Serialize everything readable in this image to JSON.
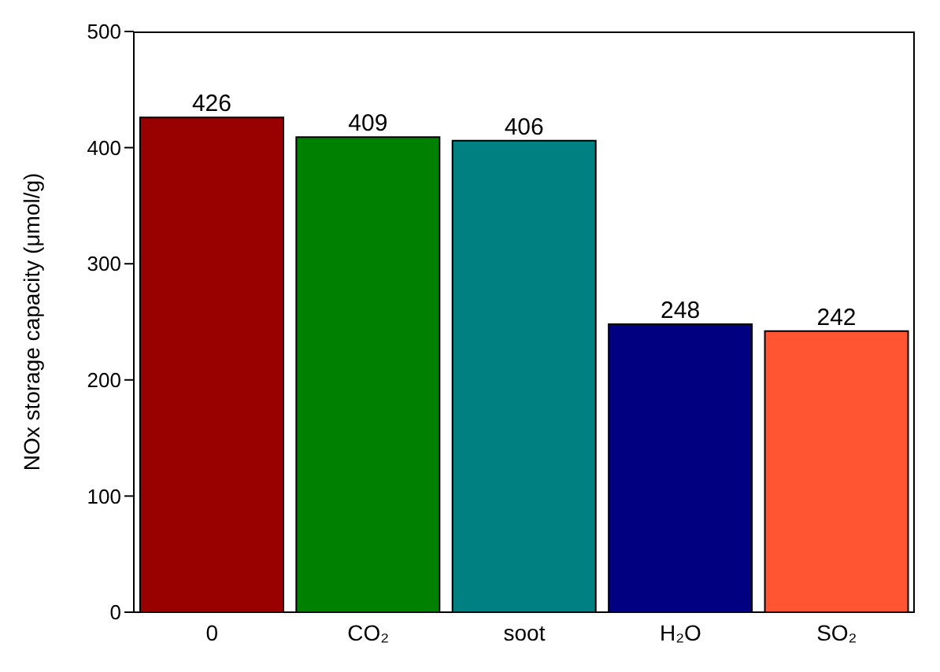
{
  "chart_data": {
    "type": "bar",
    "ylabel": "NOx storage capacity (μmol/g)",
    "categories": [
      "0",
      "CO₂",
      "soot",
      "H₂O",
      "SO₂"
    ],
    "values": [
      426,
      409,
      406,
      248,
      242
    ],
    "colors": [
      "#990000",
      "#008000",
      "#008080",
      "#000080",
      "#ff5533"
    ],
    "ylim": [
      0,
      500
    ],
    "yticks": [
      0,
      100,
      200,
      300,
      400,
      500
    ],
    "data_labels": true
  }
}
